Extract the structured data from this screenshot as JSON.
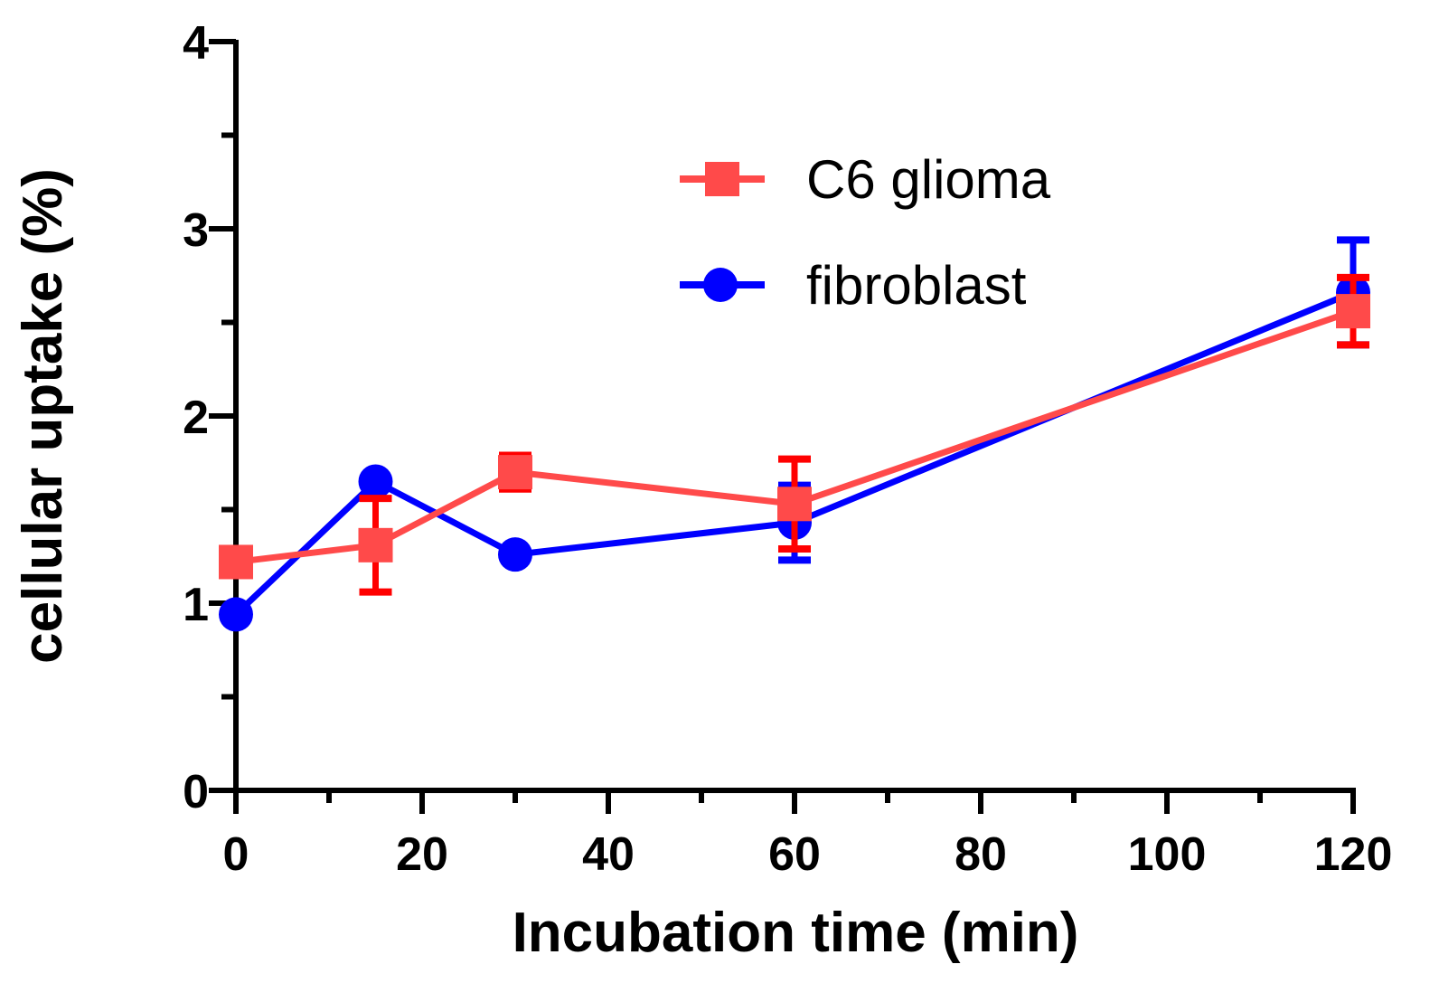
{
  "chart_data": {
    "type": "line",
    "title": "",
    "xlabel": "Incubation time (min)",
    "ylabel": "cellular  uptake (%)",
    "xlim": [
      0,
      120
    ],
    "ylim": [
      0,
      4
    ],
    "x_ticks_major": [
      0,
      20,
      40,
      60,
      80,
      100,
      120
    ],
    "x_tick_labels": [
      "0",
      "20",
      "40",
      "60",
      "80",
      "100",
      "120"
    ],
    "x_ticks_minor": [
      10,
      30,
      50,
      70,
      90,
      110
    ],
    "y_ticks_major": [
      0,
      1,
      2,
      3,
      4
    ],
    "y_tick_labels": [
      "0",
      "1",
      "2",
      "3",
      "4"
    ],
    "y_ticks_minor": [
      0.5,
      1.5,
      2.5,
      3.5
    ],
    "grid": false,
    "legend_position": "top-center",
    "series": [
      {
        "name": "C6 glioma",
        "color": "#ff4a4a",
        "error_color": "#ff0000",
        "marker": "square",
        "x": [
          0,
          15,
          30,
          60,
          120
        ],
        "y": [
          1.22,
          1.31,
          1.7,
          1.53,
          2.56
        ],
        "error": [
          0.02,
          0.25,
          0.09,
          0.24,
          0.18
        ]
      },
      {
        "name": "fibroblast",
        "color": "#0000ff",
        "error_color": "#0000ff",
        "marker": "circle",
        "x": [
          0,
          15,
          30,
          60,
          120
        ],
        "y": [
          0.94,
          1.65,
          1.26,
          1.43,
          2.66
        ],
        "error": [
          0.01,
          0.01,
          0.01,
          0.2,
          0.28
        ]
      }
    ]
  }
}
